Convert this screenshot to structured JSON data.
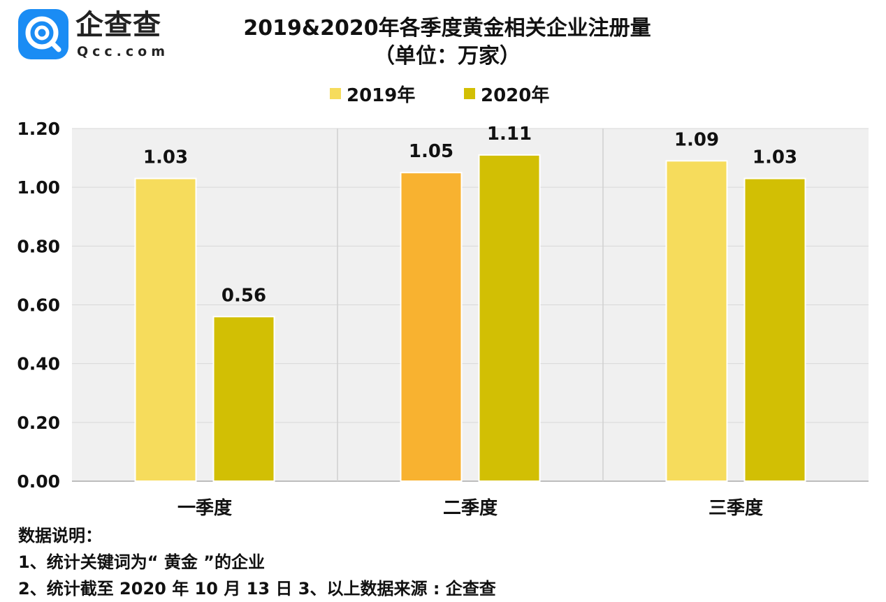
{
  "logo": {
    "cn": "企查查",
    "en": "Qcc.com"
  },
  "chart_data": {
    "type": "bar",
    "title": "2019&2020年各季度黄金相关企业注册量",
    "subtitle": "（单位：万家）",
    "categories": [
      "一季度",
      "二季度",
      "三季度"
    ],
    "series": [
      {
        "name": "2019年",
        "values": [
          1.03,
          1.05,
          1.09
        ],
        "color": "#f6dc5c",
        "point_colors": [
          "#f6dc5c",
          "#f8b230",
          "#f6dc5c"
        ]
      },
      {
        "name": "2020年",
        "values": [
          0.56,
          1.11,
          1.03
        ],
        "color": "#d2bf04"
      }
    ],
    "value_labels": [
      [
        "1.03",
        "1.05",
        "1.09"
      ],
      [
        "0.56",
        "1.11",
        "1.03"
      ]
    ],
    "yticks": [
      "0.00",
      "0.20",
      "0.40",
      "0.60",
      "0.80",
      "1.00",
      "1.20"
    ],
    "ylim": [
      0,
      1.2
    ],
    "grid": true,
    "legend": "top-center",
    "background": "#f0f0f0"
  },
  "notes": [
    "数据说明：",
    "1、统计关键词为“ 黄金 ”的企业",
    "2、统计截至 2020 年 10 月 13 日 3、以上数据来源 : 企查查"
  ]
}
